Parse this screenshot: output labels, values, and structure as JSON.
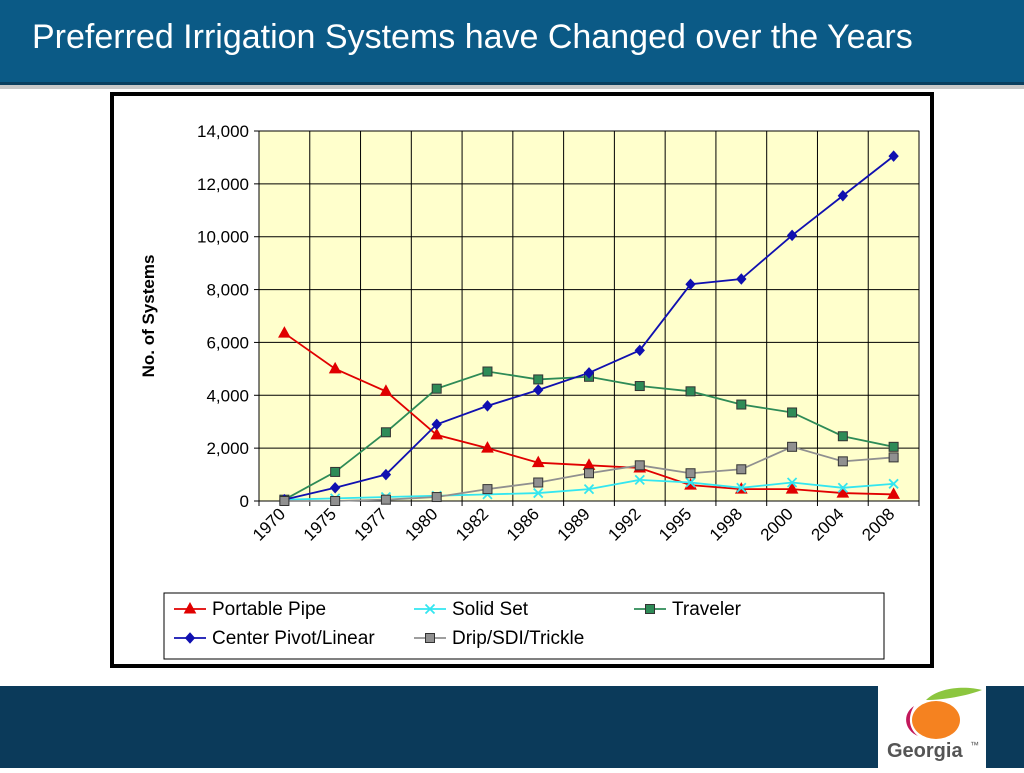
{
  "slide": {
    "title": "Preferred Irrigation Systems have Changed over the Years",
    "colors": {
      "header": "#0b5a86",
      "footer": "#0b3a5a",
      "plot_bg": "#ffffcc"
    }
  },
  "logo": {
    "text": "Georgia",
    "mark": "™"
  },
  "chart_data": {
    "type": "line",
    "categories": [
      "1970",
      "1975",
      "1977",
      "1980",
      "1982",
      "1986",
      "1989",
      "1992",
      "1995",
      "1998",
      "2000",
      "2004",
      "2008"
    ],
    "ylabel": "No. of Systems",
    "xlabel": "",
    "ylim": [
      0,
      14000
    ],
    "yticks": [
      0,
      2000,
      4000,
      6000,
      8000,
      10000,
      12000,
      14000
    ],
    "ytick_labels": [
      "0",
      "2,000",
      "4,000",
      "6,000",
      "8,000",
      "10,000",
      "12,000",
      "14,000"
    ],
    "grid": true,
    "legend_position": "bottom",
    "series": [
      {
        "name": "Portable Pipe",
        "color": "#e00000",
        "marker": "triangle",
        "values": [
          6350,
          5000,
          4150,
          2500,
          2000,
          1450,
          1350,
          1250,
          600,
          450,
          450,
          300,
          250
        ]
      },
      {
        "name": "Solid Set",
        "color": "#33e6f0",
        "marker": "x",
        "values": [
          50,
          100,
          150,
          200,
          250,
          300,
          450,
          800,
          700,
          500,
          700,
          500,
          650
        ]
      },
      {
        "name": "Traveler",
        "color": "#2e8b57",
        "marker": "square",
        "values": [
          50,
          1100,
          2600,
          4250,
          4900,
          4600,
          4700,
          4350,
          4150,
          3650,
          3350,
          2450,
          2050
        ]
      },
      {
        "name": "Center Pivot/Linear",
        "color": "#1010b0",
        "marker": "diamond",
        "values": [
          50,
          500,
          1000,
          2900,
          3600,
          4200,
          4850,
          5700,
          8200,
          8400,
          10050,
          11550,
          13050
        ]
      },
      {
        "name": "Drip/SDI/Trickle",
        "color": "#909090",
        "marker": "square",
        "values": [
          0,
          0,
          50,
          150,
          450,
          700,
          1050,
          1350,
          1050,
          1200,
          2050,
          1500,
          1650
        ]
      }
    ]
  }
}
